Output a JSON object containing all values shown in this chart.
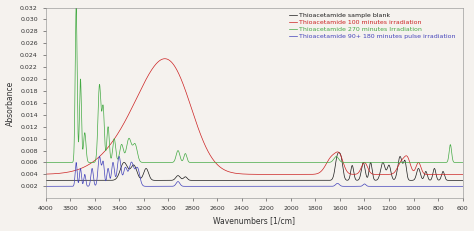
{
  "title": "",
  "xlabel": "Wavenumbers [1/cm]",
  "ylabel": "Absorbance",
  "xlim": [
    4000,
    600
  ],
  "ylim": [
    0,
    0.032
  ],
  "yticks": [
    0.002,
    0.004,
    0.006,
    0.008,
    0.01,
    0.012,
    0.014,
    0.016,
    0.018,
    0.02,
    0.022,
    0.024,
    0.026,
    0.028,
    0.03,
    0.032
  ],
  "xticks": [
    4000,
    3800,
    3600,
    3400,
    3200,
    3000,
    2800,
    2600,
    2400,
    2200,
    2000,
    1800,
    1600,
    1400,
    1200,
    1000,
    800,
    600
  ],
  "legend_labels": [
    "Thioacetamide sample blank",
    "Thioacetamide 100 minutes irradiation",
    "Thioacetamide 270 minutes Irradiation",
    "Thioacetamide 90+ 180 minutes pulse irradiation"
  ],
  "line_colors": [
    "#1a1a1a",
    "#cc2222",
    "#44aa44",
    "#4444bb"
  ],
  "background_color": "#f5f2ee",
  "legend_fontsize": 4.5,
  "axis_fontsize": 5.5,
  "tick_fontsize": 4.5
}
